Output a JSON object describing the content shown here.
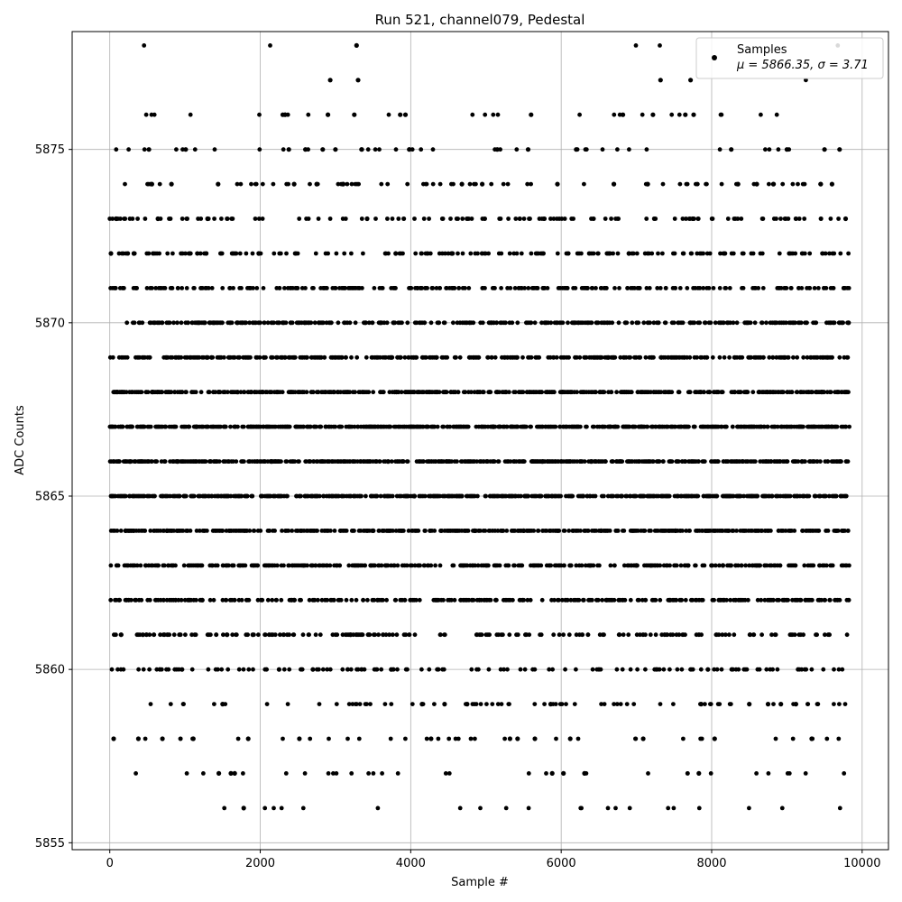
{
  "chart_data": {
    "type": "scatter",
    "title": "Run 521, channel079, Pedestal",
    "xlabel": "Sample #",
    "ylabel": "ADC Counts",
    "xlim": [
      -500,
      10350
    ],
    "ylim": [
      5854.8,
      5878.4
    ],
    "xticks": [
      0,
      2000,
      4000,
      6000,
      8000,
      10000
    ],
    "yticks": [
      5855,
      5860,
      5865,
      5870,
      5875
    ],
    "grid": true,
    "legend": {
      "placement": "top-right",
      "series_name": "Samples",
      "stats_label": "μ = 5866.35, σ = 3.71"
    },
    "marker_color": "#000000",
    "n_samples": 9830,
    "value_range": [
      5856,
      5878
    ],
    "mean": 5866.35,
    "sigma": 3.71,
    "series": [
      {
        "name": "Samples",
        "points": [
          [
            15,
            5872
          ],
          [
            52,
            5858
          ],
          [
            85,
            5873
          ],
          [
            150,
            5861
          ],
          [
            210,
            5864
          ],
          [
            270,
            5866
          ],
          [
            320,
            5872
          ],
          [
            380,
            5858
          ],
          [
            440,
            5861
          ],
          [
            520,
            5875
          ],
          [
            560,
            5874
          ],
          [
            640,
            5873
          ],
          [
            700,
            5858
          ],
          [
            760,
            5864
          ],
          [
            820,
            5874
          ],
          [
            900,
            5866
          ],
          [
            960,
            5860
          ],
          [
            1010,
            5875
          ],
          [
            1110,
            5858
          ],
          [
            1150,
            5867
          ],
          [
            1230,
            5862
          ],
          [
            1300,
            5873
          ],
          [
            1380,
            5870
          ],
          [
            1440,
            5874
          ],
          [
            1450,
            5857
          ],
          [
            1500,
            5859
          ],
          [
            1560,
            5861
          ],
          [
            1610,
            5857
          ],
          [
            1660,
            5857
          ],
          [
            1700,
            5868
          ],
          [
            1780,
            5856
          ],
          [
            1840,
            5858
          ],
          [
            1900,
            5861
          ],
          [
            1980,
            5872
          ],
          [
            2050,
            5869
          ],
          [
            2150,
            5866
          ],
          [
            2250,
            5860
          ],
          [
            2300,
            5876
          ],
          [
            2330,
            5876
          ],
          [
            2380,
            5875
          ],
          [
            2450,
            5874
          ],
          [
            2520,
            5858
          ],
          [
            2600,
            5875
          ],
          [
            2700,
            5860
          ],
          [
            2750,
            5874
          ],
          [
            2830,
            5875
          ],
          [
            2900,
            5876
          ],
          [
            2930,
            5877
          ],
          [
            3000,
            5875
          ],
          [
            3100,
            5874
          ],
          [
            3200,
            5861
          ],
          [
            3250,
            5876
          ],
          [
            3280,
            5878
          ],
          [
            3300,
            5877
          ],
          [
            3350,
            5875
          ],
          [
            3420,
            5873
          ],
          [
            3500,
            5864
          ],
          [
            3600,
            5870
          ],
          [
            3700,
            5866
          ],
          [
            3740,
            5860
          ],
          [
            3800,
            5872
          ],
          [
            3860,
            5876
          ],
          [
            3930,
            5876
          ],
          [
            3980,
            5875
          ],
          [
            4050,
            5865
          ],
          [
            4150,
            5859
          ],
          [
            4270,
            5858
          ],
          [
            4350,
            5862
          ],
          [
            4450,
            5859
          ],
          [
            4550,
            5872
          ],
          [
            4680,
            5874
          ],
          [
            4750,
            5859
          ],
          [
            4850,
            5864
          ],
          [
            4950,
            5874
          ],
          [
            5100,
            5867
          ],
          [
            5150,
            5875
          ],
          [
            5320,
            5858
          ],
          [
            5420,
            5858
          ],
          [
            5500,
            5864
          ],
          [
            5560,
            5875
          ],
          [
            5600,
            5876
          ],
          [
            5650,
            5858
          ],
          [
            5750,
            5866
          ],
          [
            5860,
            5859
          ],
          [
            5880,
            5857
          ],
          [
            5950,
            5874
          ],
          [
            6030,
            5857
          ],
          [
            6120,
            5858
          ],
          [
            6200,
            5875
          ],
          [
            6310,
            5857
          ],
          [
            6400,
            5866
          ],
          [
            6530,
            5864
          ],
          [
            6620,
            5869
          ],
          [
            6700,
            5874
          ],
          [
            6820,
            5876
          ],
          [
            6900,
            5872
          ],
          [
            7000,
            5863
          ],
          [
            7090,
            5858
          ],
          [
            7150,
            5874
          ],
          [
            7220,
            5876
          ],
          [
            7320,
            5877
          ],
          [
            7440,
            5862
          ],
          [
            7520,
            5864
          ],
          [
            7650,
            5876
          ],
          [
            7720,
            5877
          ],
          [
            7760,
            5876
          ],
          [
            7830,
            5857
          ],
          [
            7860,
            5859
          ],
          [
            7950,
            5860
          ],
          [
            8040,
            5858
          ],
          [
            8150,
            5863
          ],
          [
            8260,
            5875
          ],
          [
            8350,
            5874
          ],
          [
            8500,
            5859
          ],
          [
            8600,
            5874
          ],
          [
            8750,
            5859
          ],
          [
            8820,
            5874
          ],
          [
            8920,
            5859
          ],
          [
            9000,
            5875
          ],
          [
            9120,
            5859
          ],
          [
            9200,
            5866
          ],
          [
            9330,
            5858
          ],
          [
            9450,
            5874
          ],
          [
            9500,
            5875
          ],
          [
            9600,
            5874
          ],
          [
            9700,
            5875
          ],
          [
            9780,
            5873
          ],
          [
            9820,
            5870
          ]
        ]
      }
    ]
  }
}
